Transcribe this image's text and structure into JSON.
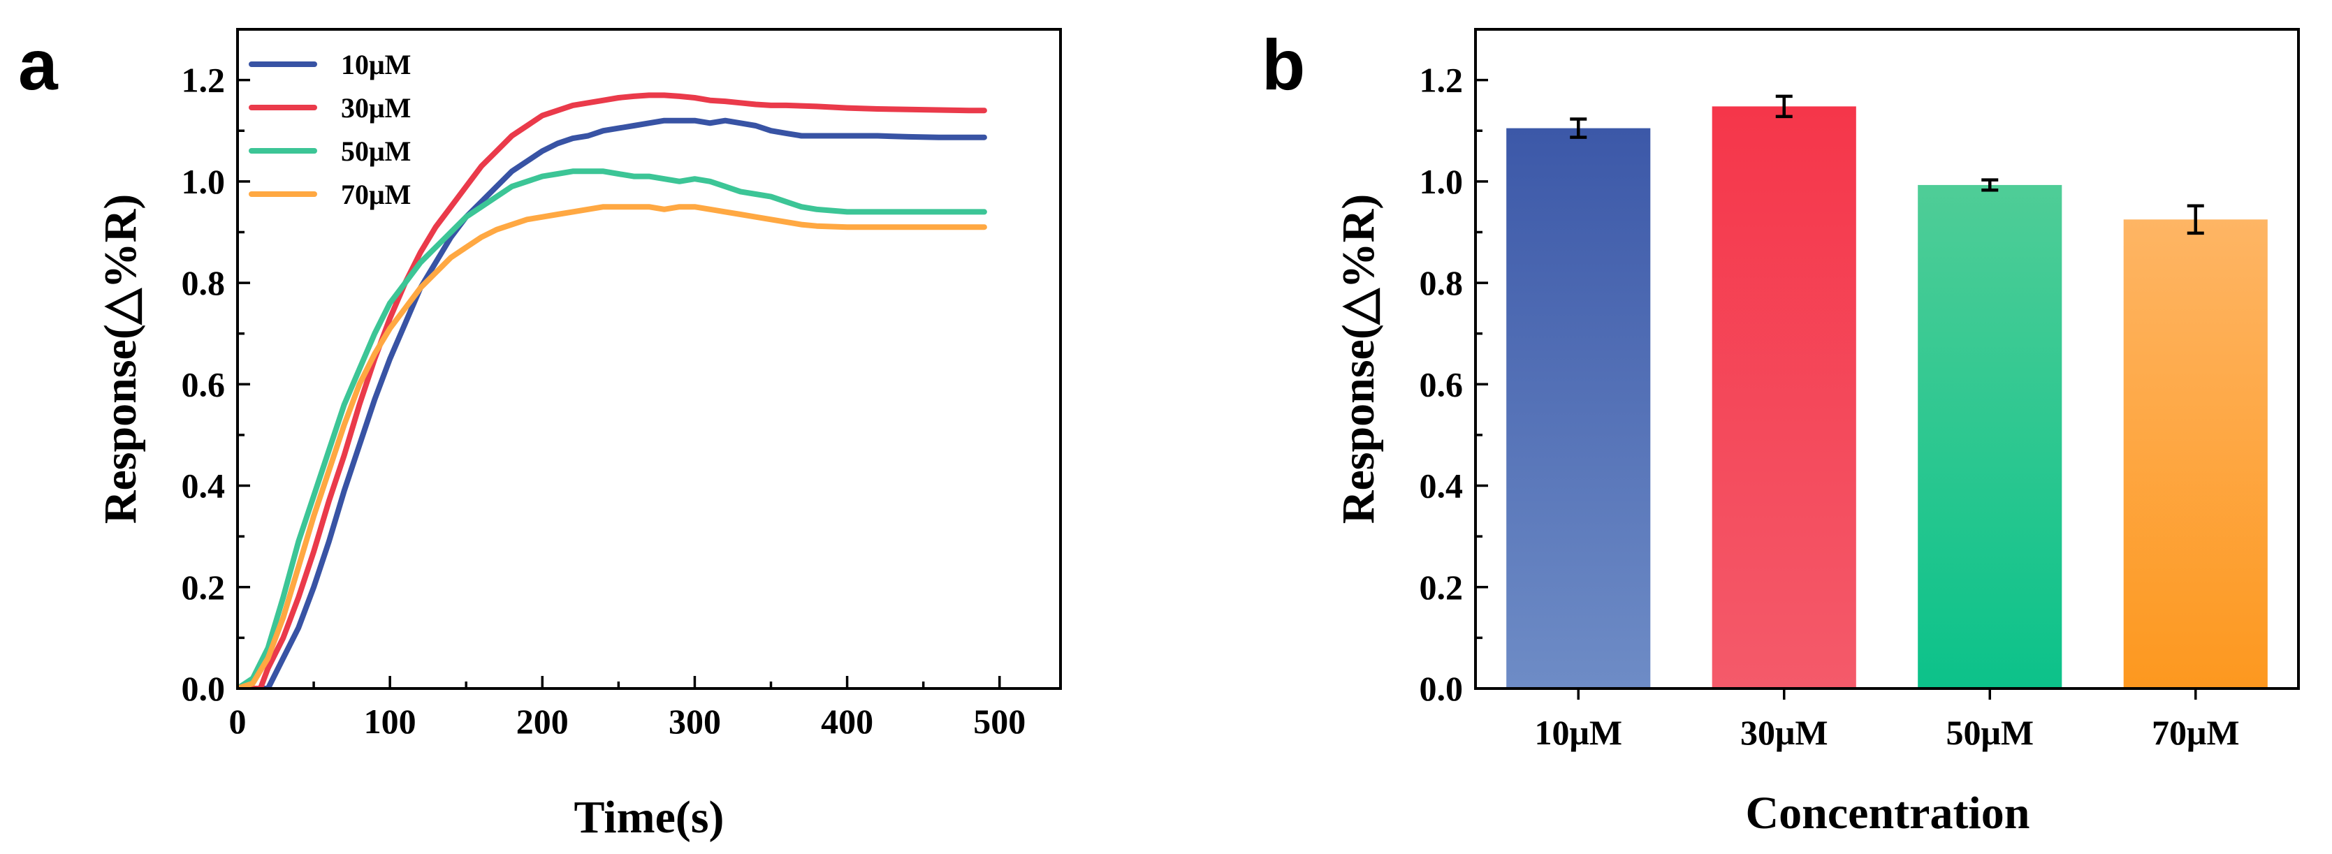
{
  "panel_a": {
    "letter": "a",
    "chart_data": {
      "type": "line",
      "xlabel": "Time(s)",
      "ylabel": "Response(△%R)",
      "xlim": [
        0,
        540
      ],
      "ylim": [
        0.0,
        1.3
      ],
      "xticks": [
        0,
        100,
        200,
        300,
        400,
        500
      ],
      "xtick_labels": [
        "0",
        "100",
        "200",
        "300",
        "400",
        "500"
      ],
      "yticks": [
        0.0,
        0.2,
        0.4,
        0.6,
        0.8,
        1.0,
        1.2
      ],
      "ytick_labels": [
        "0.0",
        "0.2",
        "0.4",
        "0.6",
        "0.8",
        "1.0",
        "1.2"
      ],
      "legend_position": "top-left",
      "series": [
        {
          "name": "10μM",
          "color": "#3853a4",
          "x": [
            0,
            20,
            30,
            40,
            50,
            60,
            70,
            80,
            90,
            100,
            110,
            120,
            130,
            140,
            150,
            160,
            170,
            180,
            190,
            200,
            210,
            220,
            230,
            240,
            250,
            260,
            270,
            280,
            290,
            300,
            310,
            320,
            330,
            340,
            350,
            360,
            370,
            380,
            400,
            420,
            440,
            460,
            480,
            490
          ],
          "y": [
            0.0,
            0.0,
            0.06,
            0.12,
            0.2,
            0.29,
            0.39,
            0.48,
            0.57,
            0.65,
            0.72,
            0.79,
            0.84,
            0.89,
            0.93,
            0.96,
            0.99,
            1.02,
            1.04,
            1.06,
            1.075,
            1.085,
            1.09,
            1.1,
            1.105,
            1.11,
            1.115,
            1.12,
            1.12,
            1.12,
            1.115,
            1.12,
            1.115,
            1.11,
            1.1,
            1.095,
            1.09,
            1.09,
            1.09,
            1.09,
            1.088,
            1.087,
            1.087,
            1.087
          ]
        },
        {
          "name": "30μM",
          "color": "#ea3a4a",
          "x": [
            0,
            15,
            20,
            30,
            40,
            50,
            60,
            70,
            80,
            90,
            100,
            110,
            120,
            130,
            140,
            150,
            160,
            170,
            180,
            190,
            200,
            210,
            220,
            230,
            240,
            250,
            260,
            270,
            280,
            290,
            300,
            310,
            320,
            330,
            340,
            350,
            360,
            380,
            400,
            420,
            440,
            460,
            480,
            490
          ],
          "y": [
            0.0,
            0.0,
            0.04,
            0.1,
            0.18,
            0.27,
            0.37,
            0.46,
            0.56,
            0.65,
            0.73,
            0.8,
            0.86,
            0.91,
            0.95,
            0.99,
            1.03,
            1.06,
            1.09,
            1.11,
            1.13,
            1.14,
            1.15,
            1.155,
            1.16,
            1.165,
            1.168,
            1.17,
            1.17,
            1.168,
            1.165,
            1.16,
            1.158,
            1.155,
            1.152,
            1.15,
            1.15,
            1.148,
            1.145,
            1.143,
            1.142,
            1.141,
            1.14,
            1.14
          ]
        },
        {
          "name": "50μM",
          "color": "#3cc596",
          "x": [
            0,
            10,
            20,
            30,
            40,
            50,
            60,
            70,
            80,
            90,
            100,
            110,
            120,
            130,
            140,
            150,
            160,
            170,
            180,
            190,
            200,
            210,
            220,
            230,
            240,
            250,
            260,
            270,
            280,
            290,
            300,
            310,
            320,
            330,
            340,
            350,
            360,
            370,
            380,
            400,
            420,
            440,
            460,
            480,
            490
          ],
          "y": [
            0.0,
            0.02,
            0.08,
            0.18,
            0.29,
            0.38,
            0.47,
            0.56,
            0.63,
            0.7,
            0.76,
            0.8,
            0.84,
            0.87,
            0.9,
            0.93,
            0.95,
            0.97,
            0.99,
            1.0,
            1.01,
            1.015,
            1.02,
            1.02,
            1.02,
            1.015,
            1.01,
            1.01,
            1.005,
            1.0,
            1.005,
            1.0,
            0.99,
            0.98,
            0.975,
            0.97,
            0.96,
            0.95,
            0.945,
            0.94,
            0.94,
            0.94,
            0.94,
            0.94,
            0.94
          ]
        },
        {
          "name": "70μM",
          "color": "#ffa842",
          "x": [
            0,
            10,
            20,
            30,
            40,
            50,
            60,
            70,
            80,
            90,
            100,
            110,
            120,
            130,
            140,
            150,
            160,
            170,
            180,
            190,
            200,
            210,
            220,
            230,
            240,
            250,
            260,
            270,
            280,
            290,
            300,
            310,
            320,
            330,
            340,
            350,
            360,
            370,
            380,
            400,
            420,
            440,
            460,
            480,
            490
          ],
          "y": [
            0.0,
            0.01,
            0.06,
            0.14,
            0.24,
            0.34,
            0.43,
            0.52,
            0.6,
            0.66,
            0.71,
            0.75,
            0.79,
            0.82,
            0.85,
            0.87,
            0.89,
            0.905,
            0.915,
            0.925,
            0.93,
            0.935,
            0.94,
            0.945,
            0.95,
            0.95,
            0.95,
            0.95,
            0.945,
            0.95,
            0.95,
            0.945,
            0.94,
            0.935,
            0.93,
            0.925,
            0.92,
            0.915,
            0.912,
            0.91,
            0.91,
            0.91,
            0.91,
            0.91,
            0.91
          ]
        }
      ]
    }
  },
  "panel_b": {
    "letter": "b",
    "chart_data": {
      "type": "bar",
      "xlabel": "Concentration",
      "ylabel": "Response(△%R)",
      "ylim": [
        0.0,
        1.3
      ],
      "yticks": [
        0.0,
        0.2,
        0.4,
        0.6,
        0.8,
        1.0,
        1.2
      ],
      "ytick_labels": [
        "0.0",
        "0.2",
        "0.4",
        "0.6",
        "0.8",
        "1.0",
        "1.2"
      ],
      "categories": [
        "10μM",
        "30μM",
        "50μM",
        "70μM"
      ],
      "values": [
        1.105,
        1.148,
        0.993,
        0.925
      ],
      "errors": [
        0.018,
        0.02,
        0.01,
        0.027
      ],
      "colors_top": [
        "#3c58a8",
        "#f5364a",
        "#4fcd97",
        "#feb564"
      ],
      "colors_bottom": [
        "#6e8cc6",
        "#f45a6a",
        "#0cc28a",
        "#fd981f"
      ]
    }
  }
}
